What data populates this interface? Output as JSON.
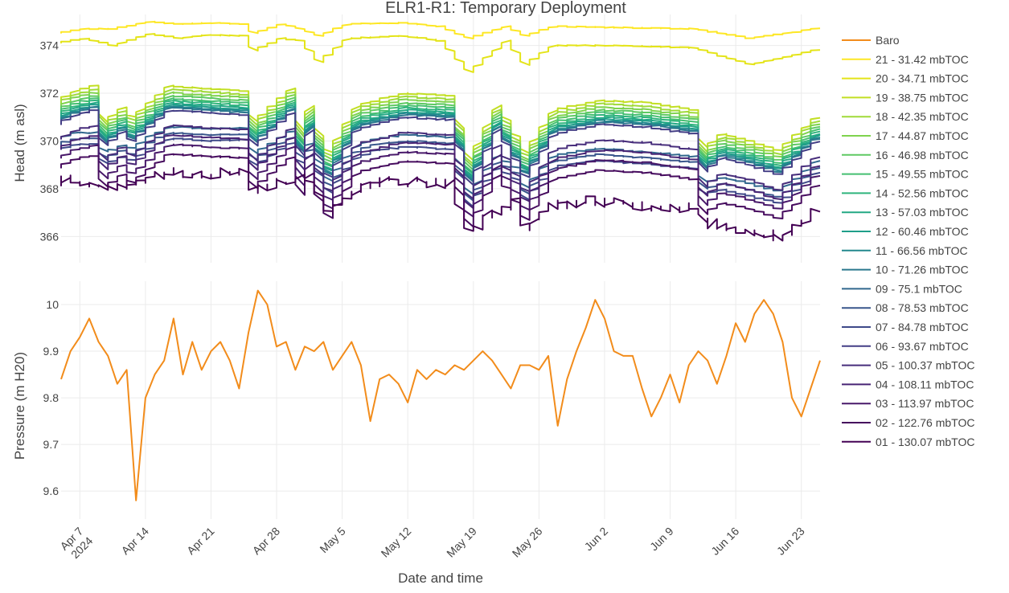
{
  "chart_data": {
    "title": "ELR1-R1: Temporary Deployment",
    "xlabel": "Date and time",
    "x_range": [
      "2024-04-05",
      "2024-06-25"
    ],
    "x_ticks": [
      {
        "date": "2024-04-07",
        "label": "Apr 7",
        "sub": "2024"
      },
      {
        "date": "2024-04-14",
        "label": "Apr 14",
        "sub": ""
      },
      {
        "date": "2024-04-21",
        "label": "Apr 21",
        "sub": ""
      },
      {
        "date": "2024-04-28",
        "label": "Apr 28",
        "sub": ""
      },
      {
        "date": "2024-05-05",
        "label": "May 5",
        "sub": ""
      },
      {
        "date": "2024-05-12",
        "label": "May 12",
        "sub": ""
      },
      {
        "date": "2024-05-19",
        "label": "May 19",
        "sub": ""
      },
      {
        "date": "2024-05-26",
        "label": "May 26",
        "sub": ""
      },
      {
        "date": "2024-06-02",
        "label": "Jun 2",
        "sub": ""
      },
      {
        "date": "2024-06-09",
        "label": "Jun 9",
        "sub": ""
      },
      {
        "date": "2024-06-16",
        "label": "Jun 16",
        "sub": ""
      },
      {
        "date": "2024-06-23",
        "label": "Jun 23",
        "sub": ""
      }
    ],
    "grid": true,
    "legend_position": "right",
    "subplots": [
      {
        "name": "head",
        "type": "line",
        "ylabel": "Head (m asl)",
        "ylim": [
          364.9,
          375.3
        ],
        "y_ticks": [
          366,
          368,
          370,
          372,
          374
        ],
        "series_names": [
          "21 - 31.42 mbTOC",
          "20 - 34.71 mbTOC",
          "19 - 38.75 mbTOC",
          "18 - 42.35 mbTOC",
          "17 - 44.87 mbTOC",
          "16 - 46.98 mbTOC",
          "15 - 49.55 mbTOC",
          "14 - 52.56 mbTOC",
          "13 - 57.03 mbTOC",
          "12 - 60.46 mbTOC",
          "11 - 66.56 mbTOC",
          "10 - 71.26 mbTOC",
          "09 - 75.1 mbTOC",
          "08 - 78.53 mbTOC",
          "07 - 84.78 mbTOC",
          "06 - 93.67 mbTOC",
          "05 - 100.37 mbTOC",
          "04 - 108.11 mbTOC",
          "03 - 113.97 mbTOC",
          "02 - 122.76 mbTOC",
          "01 - 130.07 mbTOC"
        ],
        "colors": [
          "#fde725",
          "#e4e419",
          "#c2df23",
          "#a0da39",
          "#7fd34e",
          "#5ec962",
          "#44bf70",
          "#2fb47c",
          "#22a884",
          "#1f9e89",
          "#23888e",
          "#2a788e",
          "#31688e",
          "#39568c",
          "#3e4989",
          "#433e85",
          "#472d7b",
          "#482475",
          "#48186a",
          "#460b5e",
          "#440154"
        ],
        "series_21_key": [
          [
            "2024-04-05",
            374.5
          ],
          [
            "2024-04-08",
            374.7
          ],
          [
            "2024-04-11",
            374.7
          ],
          [
            "2024-04-15",
            375.0
          ],
          [
            "2024-04-18",
            374.9
          ],
          [
            "2024-04-21",
            374.95
          ],
          [
            "2024-04-25",
            374.9
          ],
          [
            "2024-04-26",
            374.5
          ],
          [
            "2024-04-29",
            374.9
          ],
          [
            "2024-05-01",
            374.7
          ],
          [
            "2024-05-03",
            374.4
          ],
          [
            "2024-05-06",
            374.9
          ],
          [
            "2024-05-12",
            374.95
          ],
          [
            "2024-05-16",
            374.8
          ],
          [
            "2024-05-19",
            374.3
          ],
          [
            "2024-05-23",
            374.8
          ],
          [
            "2024-05-25",
            374.4
          ],
          [
            "2024-05-28",
            374.8
          ],
          [
            "2024-06-04",
            374.75
          ],
          [
            "2024-06-12",
            374.7
          ],
          [
            "2024-06-18",
            374.3
          ],
          [
            "2024-06-25",
            374.7
          ]
        ],
        "series_20_key": [
          [
            "2024-04-05",
            374.1
          ],
          [
            "2024-04-08",
            374.3
          ],
          [
            "2024-04-11",
            374.0
          ],
          [
            "2024-04-15",
            374.5
          ],
          [
            "2024-04-18",
            374.3
          ],
          [
            "2024-04-21",
            374.45
          ],
          [
            "2024-04-25",
            374.4
          ],
          [
            "2024-04-26",
            373.8
          ],
          [
            "2024-04-29",
            374.3
          ],
          [
            "2024-05-01",
            374.2
          ],
          [
            "2024-05-03",
            373.3
          ],
          [
            "2024-05-06",
            374.3
          ],
          [
            "2024-05-12",
            374.4
          ],
          [
            "2024-05-16",
            374.2
          ],
          [
            "2024-05-19",
            372.9
          ],
          [
            "2024-05-23",
            374.2
          ],
          [
            "2024-05-25",
            373.2
          ],
          [
            "2024-05-28",
            374.0
          ],
          [
            "2024-06-04",
            374.0
          ],
          [
            "2024-06-12",
            373.9
          ],
          [
            "2024-06-18",
            373.2
          ],
          [
            "2024-06-25",
            373.8
          ]
        ],
        "series_19_key": [
          [
            "2024-04-05",
            371.7
          ],
          [
            "2024-04-07",
            372.1
          ],
          [
            "2024-04-09",
            372.3
          ],
          [
            "2024-04-10",
            370.8
          ],
          [
            "2024-04-12",
            371.4
          ],
          [
            "2024-04-13",
            371.0
          ],
          [
            "2024-04-17",
            372.3
          ],
          [
            "2024-04-21",
            372.2
          ],
          [
            "2024-04-25",
            372.1
          ],
          [
            "2024-04-26",
            370.8
          ],
          [
            "2024-04-30",
            372.2
          ],
          [
            "2024-05-01",
            370.4
          ],
          [
            "2024-05-02",
            371.5
          ],
          [
            "2024-05-03",
            370.2
          ],
          [
            "2024-05-04",
            369.5
          ],
          [
            "2024-05-07",
            371.5
          ],
          [
            "2024-05-12",
            372.0
          ],
          [
            "2024-05-17",
            371.9
          ],
          [
            "2024-05-19",
            369.2
          ],
          [
            "2024-05-22",
            371.5
          ],
          [
            "2024-05-25",
            369.5
          ],
          [
            "2024-05-28",
            371.3
          ],
          [
            "2024-06-02",
            371.7
          ],
          [
            "2024-06-07",
            371.6
          ],
          [
            "2024-06-12",
            371.3
          ],
          [
            "2024-06-13",
            369.7
          ],
          [
            "2024-06-15",
            370.3
          ],
          [
            "2024-06-18",
            370.0
          ],
          [
            "2024-06-21",
            369.6
          ],
          [
            "2024-06-25",
            371.0
          ]
        ],
        "series_01_key": [
          [
            "2024-04-05",
            368.3
          ],
          [
            "2024-04-07",
            368.4
          ],
          [
            "2024-04-09",
            368.2
          ],
          [
            "2024-04-11",
            368.0
          ],
          [
            "2024-04-13",
            368.2
          ],
          [
            "2024-04-15",
            368.6
          ],
          [
            "2024-04-18",
            368.7
          ],
          [
            "2024-04-21",
            368.6
          ],
          [
            "2024-04-25",
            368.8
          ],
          [
            "2024-04-26",
            367.9
          ],
          [
            "2024-04-29",
            368.3
          ],
          [
            "2024-05-01",
            368.5
          ],
          [
            "2024-05-03",
            367.7
          ],
          [
            "2024-05-04",
            367.0
          ],
          [
            "2024-05-06",
            367.8
          ],
          [
            "2024-05-09",
            368.3
          ],
          [
            "2024-05-14",
            368.3
          ],
          [
            "2024-05-17",
            368.2
          ],
          [
            "2024-05-19",
            366.1
          ],
          [
            "2024-05-21",
            366.9
          ],
          [
            "2024-05-24",
            367.4
          ],
          [
            "2024-05-25",
            366.4
          ],
          [
            "2024-05-28",
            367.3
          ],
          [
            "2024-06-01",
            367.5
          ],
          [
            "2024-06-06",
            367.3
          ],
          [
            "2024-06-12",
            367.2
          ],
          [
            "2024-06-13",
            366.6
          ],
          [
            "2024-06-18",
            366.2
          ],
          [
            "2024-06-21",
            366.0
          ],
          [
            "2024-06-23",
            366.4
          ],
          [
            "2024-06-25",
            367.1
          ]
        ]
      },
      {
        "name": "baro",
        "type": "line",
        "ylabel": "Pressure (m H20)",
        "ylim": [
          9.54,
          10.05
        ],
        "y_ticks": [
          9.6,
          9.7,
          9.8,
          9.9,
          10.0
        ],
        "y_tick_labels": [
          "9.6",
          "9.7",
          "9.8",
          "9.9",
          "10"
        ],
        "series": [
          {
            "name": "Baro",
            "color": "#f28c1b",
            "points": [
              [
                "2024-04-05",
                9.84
              ],
              [
                "2024-04-06",
                9.9
              ],
              [
                "2024-04-07",
                9.93
              ],
              [
                "2024-04-08",
                9.97
              ],
              [
                "2024-04-09",
                9.92
              ],
              [
                "2024-04-10",
                9.89
              ],
              [
                "2024-04-11",
                9.83
              ],
              [
                "2024-04-12",
                9.86
              ],
              [
                "2024-04-13",
                9.58
              ],
              [
                "2024-04-14",
                9.8
              ],
              [
                "2024-04-15",
                9.85
              ],
              [
                "2024-04-16",
                9.88
              ],
              [
                "2024-04-17",
                9.97
              ],
              [
                "2024-04-18",
                9.85
              ],
              [
                "2024-04-19",
                9.92
              ],
              [
                "2024-04-20",
                9.86
              ],
              [
                "2024-04-21",
                9.9
              ],
              [
                "2024-04-22",
                9.92
              ],
              [
                "2024-04-23",
                9.88
              ],
              [
                "2024-04-24",
                9.82
              ],
              [
                "2024-04-25",
                9.94
              ],
              [
                "2024-04-26",
                10.03
              ],
              [
                "2024-04-27",
                10.0
              ],
              [
                "2024-04-28",
                9.91
              ],
              [
                "2024-04-29",
                9.92
              ],
              [
                "2024-04-30",
                9.86
              ],
              [
                "2024-05-01",
                9.91
              ],
              [
                "2024-05-02",
                9.9
              ],
              [
                "2024-05-03",
                9.92
              ],
              [
                "2024-05-04",
                9.86
              ],
              [
                "2024-05-05",
                9.89
              ],
              [
                "2024-05-06",
                9.92
              ],
              [
                "2024-05-07",
                9.87
              ],
              [
                "2024-05-08",
                9.75
              ],
              [
                "2024-05-09",
                9.84
              ],
              [
                "2024-05-10",
                9.85
              ],
              [
                "2024-05-11",
                9.83
              ],
              [
                "2024-05-12",
                9.79
              ],
              [
                "2024-05-13",
                9.86
              ],
              [
                "2024-05-14",
                9.84
              ],
              [
                "2024-05-15",
                9.86
              ],
              [
                "2024-05-16",
                9.85
              ],
              [
                "2024-05-17",
                9.87
              ],
              [
                "2024-05-18",
                9.86
              ],
              [
                "2024-05-19",
                9.88
              ],
              [
                "2024-05-20",
                9.9
              ],
              [
                "2024-05-21",
                9.88
              ],
              [
                "2024-05-22",
                9.85
              ],
              [
                "2024-05-23",
                9.82
              ],
              [
                "2024-05-24",
                9.87
              ],
              [
                "2024-05-25",
                9.87
              ],
              [
                "2024-05-26",
                9.86
              ],
              [
                "2024-05-27",
                9.89
              ],
              [
                "2024-05-28",
                9.74
              ],
              [
                "2024-05-29",
                9.84
              ],
              [
                "2024-05-30",
                9.9
              ],
              [
                "2024-05-31",
                9.95
              ],
              [
                "2024-06-01",
                10.01
              ],
              [
                "2024-06-02",
                9.97
              ],
              [
                "2024-06-03",
                9.9
              ],
              [
                "2024-06-04",
                9.89
              ],
              [
                "2024-06-05",
                9.89
              ],
              [
                "2024-06-06",
                9.82
              ],
              [
                "2024-06-07",
                9.76
              ],
              [
                "2024-06-08",
                9.8
              ],
              [
                "2024-06-09",
                9.85
              ],
              [
                "2024-06-10",
                9.79
              ],
              [
                "2024-06-11",
                9.87
              ],
              [
                "2024-06-12",
                9.9
              ],
              [
                "2024-06-13",
                9.88
              ],
              [
                "2024-06-14",
                9.83
              ],
              [
                "2024-06-15",
                9.89
              ],
              [
                "2024-06-16",
                9.96
              ],
              [
                "2024-06-17",
                9.92
              ],
              [
                "2024-06-18",
                9.98
              ],
              [
                "2024-06-19",
                10.01
              ],
              [
                "2024-06-20",
                9.98
              ],
              [
                "2024-06-21",
                9.92
              ],
              [
                "2024-06-22",
                9.8
              ],
              [
                "2024-06-23",
                9.76
              ],
              [
                "2024-06-24",
                9.82
              ],
              [
                "2024-06-25",
                9.88
              ]
            ]
          }
        ]
      }
    ]
  }
}
